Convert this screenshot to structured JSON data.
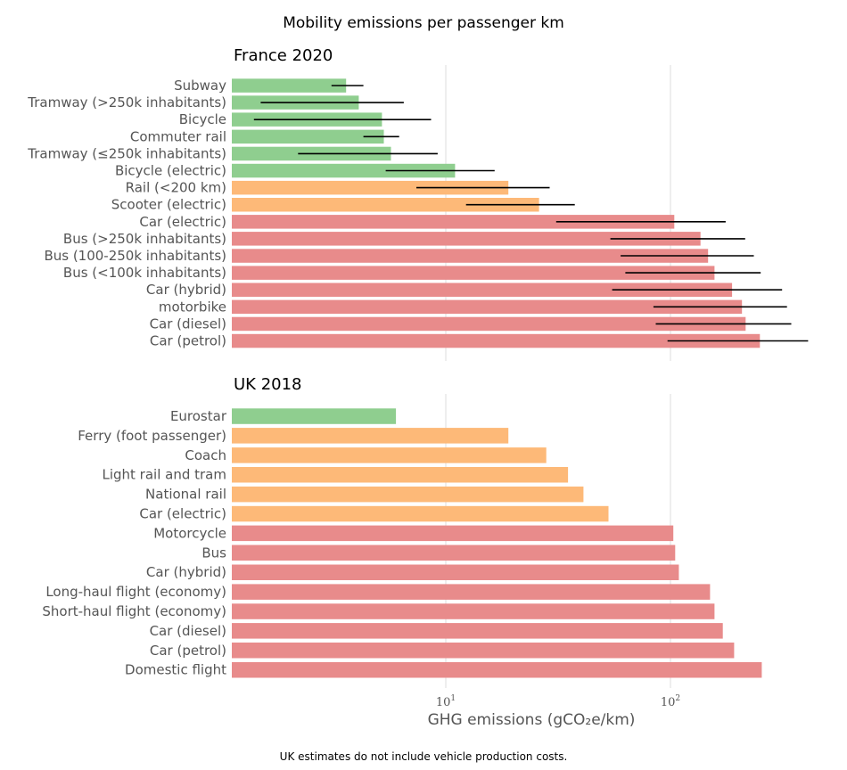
{
  "colors": {
    "low": "#8fce8f",
    "mid": "#fdb978",
    "high": "#e88b8b",
    "error": "#000000",
    "grid": "#dddddd"
  },
  "chart_data": {
    "type": "bar",
    "orientation": "horizontal",
    "title": "Mobility emissions per passenger km",
    "xlabel": "GHG emissions (gCO₂e/km)",
    "xscale": "log",
    "xlim": [
      1,
      400
    ],
    "xticks": [
      {
        "value": 10,
        "base": "10",
        "exp": "1"
      },
      {
        "value": 100,
        "base": "10",
        "exp": "2"
      }
    ],
    "grid": "vertical at major ticks",
    "footnote": "UK estimates do not include vehicle production costs.",
    "panels": [
      {
        "title": "France 2020",
        "categories": [
          "Subway",
          "Tramway (>250k inhabitants)",
          "Bicycle",
          "Commuter rail",
          "Tramway (≤250k inhabitants)",
          "Bicycle (electric)",
          "Rail (<200 km)",
          "Scooter (electric)",
          "Car (electric)",
          "Bus (>250k inhabitants)",
          "Bus (100-250k inhabitants)",
          "Bus (<100k inhabitants)",
          "Car (hybrid)",
          "motorbike",
          "Car (diesel)",
          "Car (petrol)"
        ],
        "values": [
          3.6,
          4.1,
          5.2,
          5.3,
          5.7,
          11,
          19,
          26,
          104,
          136,
          147,
          157,
          188,
          208,
          216,
          250
        ],
        "error_low": [
          3.1,
          1.5,
          1.4,
          4.3,
          2.2,
          5.4,
          7.4,
          12.3,
          31,
          54,
          60,
          63,
          55,
          84,
          86,
          97
        ],
        "error_high": [
          4.3,
          6.5,
          8.6,
          6.2,
          9.2,
          16.5,
          29,
          37.5,
          176,
          215,
          235,
          252,
          314,
          330,
          345,
          410
        ],
        "groups": [
          "low",
          "low",
          "low",
          "low",
          "low",
          "low",
          "mid",
          "mid",
          "high",
          "high",
          "high",
          "high",
          "high",
          "high",
          "high",
          "high"
        ]
      },
      {
        "title": "UK 2018",
        "categories": [
          "Eurostar",
          "Ferry (foot passenger)",
          "Coach",
          "Light rail and tram",
          "National rail",
          "Car (electric)",
          "Motorcycle",
          "Bus",
          "Car (hybrid)",
          "Long-haul flight (economy)",
          "Short-haul flight (economy)",
          "Car (diesel)",
          "Car (petrol)",
          "Domestic flight"
        ],
        "values": [
          6,
          19,
          28,
          35,
          41,
          53,
          103,
          105,
          109,
          150,
          157,
          171,
          192,
          255
        ],
        "groups": [
          "low",
          "mid",
          "mid",
          "mid",
          "mid",
          "mid",
          "high",
          "high",
          "high",
          "high",
          "high",
          "high",
          "high",
          "high"
        ]
      }
    ]
  }
}
